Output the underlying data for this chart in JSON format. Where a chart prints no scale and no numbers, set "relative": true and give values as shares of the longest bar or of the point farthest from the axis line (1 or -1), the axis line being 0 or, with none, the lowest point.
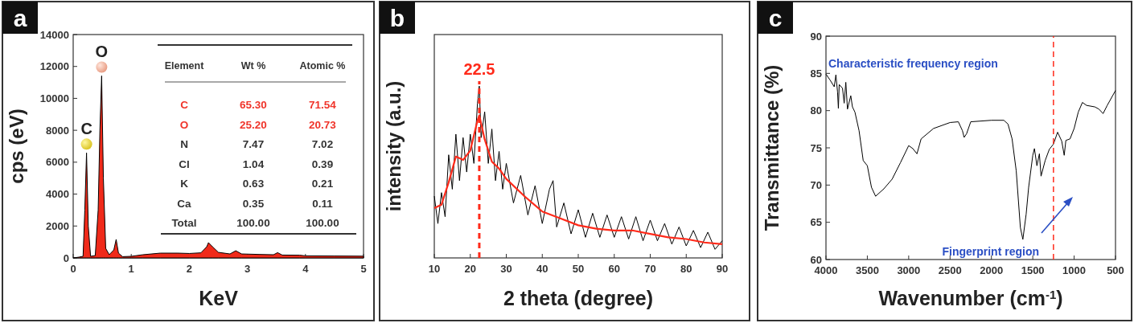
{
  "chart_data": [
    {
      "type": "area",
      "title": "a",
      "xlabel": "KeV",
      "ylabel": "cps (eV)",
      "xlim": [
        0,
        5
      ],
      "ylim": [
        0,
        14000
      ],
      "xticks": [
        0,
        1,
        2,
        3,
        4,
        5
      ],
      "yticks": [
        0,
        2000,
        4000,
        6000,
        8000,
        10000,
        12000,
        14000
      ],
      "series": [
        {
          "color": "#f02a1a",
          "x": [
            0,
            0.1,
            0.17,
            0.2,
            0.23,
            0.26,
            0.3,
            0.38,
            0.43,
            0.46,
            0.49,
            0.52,
            0.56,
            0.62,
            0.7,
            0.74,
            0.78,
            0.85,
            1.0,
            1.2,
            1.5,
            1.8,
            2.0,
            2.2,
            2.3,
            2.33,
            2.4,
            2.5,
            2.7,
            2.8,
            2.9,
            3.2,
            3.45,
            3.52,
            3.6,
            3.9,
            4.0,
            4.5,
            5.0
          ],
          "values": [
            0,
            50,
            100,
            3000,
            6580,
            2000,
            100,
            150,
            3000,
            8000,
            11410,
            5000,
            600,
            200,
            500,
            1160,
            300,
            80,
            100,
            200,
            300,
            300,
            280,
            320,
            700,
            960,
            700,
            350,
            250,
            450,
            250,
            220,
            200,
            330,
            180,
            170,
            130,
            120,
            110
          ]
        }
      ],
      "annotations": [
        {
          "text": "C",
          "x": 0.23,
          "y": 6580
        },
        {
          "text": "O",
          "x": 0.49,
          "y": 11410
        },
        "Element",
        "Wt %",
        "Atomic %",
        "C",
        "65.30",
        "71.54",
        "O",
        "25.20",
        "20.73",
        "N",
        "7.47",
        "7.02",
        "Cl",
        "1.04",
        "0.39",
        "K",
        "0.63",
        "0.21",
        "Ca",
        "0.35",
        "0.11",
        "Total",
        "100.00",
        "100.00"
      ]
    },
    {
      "type": "line",
      "title": "b",
      "xlabel": "2 theta (degree)",
      "ylabel": "intensity (a.u.)",
      "xlim": [
        10,
        90
      ],
      "xticks": [
        10,
        20,
        30,
        40,
        50,
        60,
        70,
        80,
        90
      ],
      "relative": true,
      "series": [
        {
          "color": "#000000",
          "x": [
            10,
            11,
            12,
            13,
            14,
            15,
            16,
            17,
            18,
            19,
            20,
            21,
            22,
            22.5,
            23,
            24,
            25,
            26,
            27,
            28,
            29,
            30,
            32,
            34,
            36,
            38,
            40,
            42,
            43,
            44,
            46,
            48,
            50,
            52,
            54,
            56,
            58,
            60,
            62,
            64,
            66,
            68,
            70,
            72,
            74,
            76,
            78,
            80,
            82,
            84,
            86,
            88,
            90
          ],
          "values": [
            0.36,
            0.2,
            0.38,
            0.24,
            0.6,
            0.4,
            0.72,
            0.45,
            0.7,
            0.5,
            0.72,
            0.55,
            0.9,
            1.0,
            0.7,
            0.85,
            0.55,
            0.75,
            0.45,
            0.62,
            0.4,
            0.55,
            0.32,
            0.48,
            0.25,
            0.42,
            0.2,
            0.4,
            0.45,
            0.18,
            0.32,
            0.14,
            0.28,
            0.12,
            0.26,
            0.12,
            0.25,
            0.12,
            0.24,
            0.11,
            0.24,
            0.1,
            0.22,
            0.1,
            0.2,
            0.08,
            0.18,
            0.07,
            0.16,
            0.06,
            0.15,
            0.05,
            0.1
          ]
        },
        {
          "color": "#ff2a1a",
          "x": [
            10,
            12,
            14,
            16,
            18,
            20,
            22,
            22.5,
            24,
            26,
            28,
            30,
            35,
            40,
            45,
            50,
            55,
            60,
            65,
            70,
            75,
            80,
            85,
            90
          ],
          "values": [
            0.29,
            0.31,
            0.44,
            0.59,
            0.57,
            0.625,
            0.8,
            0.83,
            0.69,
            0.56,
            0.52,
            0.46,
            0.36,
            0.27,
            0.23,
            0.19,
            0.17,
            0.16,
            0.16,
            0.14,
            0.12,
            0.11,
            0.09,
            0.08
          ]
        }
      ],
      "ref_lines": [
        {
          "axis": "x",
          "value": 22.5,
          "label": "22.5",
          "color": "#ff2a1a",
          "line_style": "dashed"
        }
      ]
    },
    {
      "type": "line",
      "title": "c",
      "xlabel": "Wavenumber (cm$^{-1}$)",
      "ylabel": "Transmittance (%)",
      "xlim": [
        4000,
        500
      ],
      "ylim": [
        60,
        90
      ],
      "xticks": [
        4000,
        3500,
        3000,
        2500,
        2000,
        1500,
        1000,
        500
      ],
      "yticks": [
        60,
        65,
        70,
        75,
        80,
        85,
        90
      ],
      "series": [
        {
          "color": "#000000",
          "x": [
            4000,
            3950,
            3900,
            3880,
            3860,
            3850,
            3840,
            3800,
            3780,
            3760,
            3740,
            3700,
            3680,
            3650,
            3600,
            3550,
            3500,
            3450,
            3400,
            3300,
            3200,
            3100,
            3000,
            2950,
            2900,
            2850,
            2700,
            2500,
            2400,
            2350,
            2330,
            2300,
            2250,
            2000,
            1850,
            1800,
            1750,
            1700,
            1650,
            1620,
            1580,
            1550,
            1500,
            1480,
            1450,
            1420,
            1400,
            1350,
            1300,
            1250,
            1200,
            1150,
            1120,
            1100,
            1050,
            1000,
            950,
            900,
            850,
            750,
            700,
            650,
            600,
            500
          ],
          "values": [
            84.9,
            84.1,
            83.2,
            84.8,
            82.5,
            80.3,
            83.5,
            83.0,
            81.0,
            83.8,
            80.2,
            82.0,
            80.5,
            79.8,
            77.3,
            73.3,
            72.6,
            69.7,
            68.5,
            69.5,
            70.8,
            73.0,
            75.3,
            74.9,
            74.2,
            76.2,
            77.6,
            78.4,
            78.5,
            77.3,
            76.4,
            76.9,
            78.5,
            78.7,
            78.7,
            78.2,
            76.2,
            71.9,
            64.3,
            62.7,
            66.1,
            69.7,
            74.0,
            74.9,
            72.6,
            74.2,
            71.2,
            73.3,
            74.8,
            75.5,
            77.1,
            75.9,
            74.0,
            76.0,
            76.2,
            77.6,
            79.8,
            81.1,
            80.7,
            80.5,
            80.2,
            79.6,
            80.7,
            82.7
          ]
        }
      ],
      "ref_lines": [
        {
          "axis": "x",
          "value": 1250,
          "color": "#ff2a1a",
          "line_style": "dashed"
        }
      ],
      "annotations": [
        "Characteristic frequency region",
        "Fingerprint region"
      ]
    }
  ]
}
